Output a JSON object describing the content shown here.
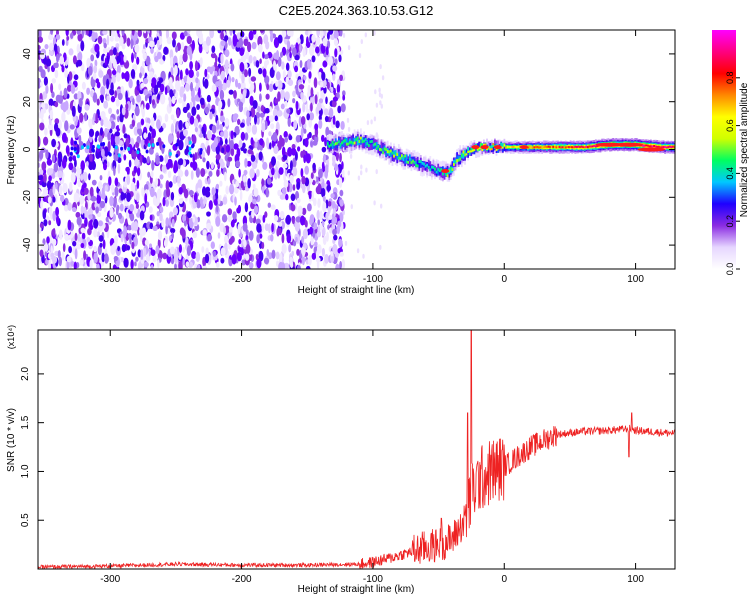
{
  "title": "C2E5.2024.363.10.53.G12",
  "chart_data": [
    {
      "type": "heatmap",
      "xlabel": "Height of straight line (km)",
      "ylabel": "Frequency (Hz)",
      "xlim": [
        -355,
        130
      ],
      "ylim": [
        -50,
        50
      ],
      "xticks": [
        -300,
        -200,
        -100,
        0,
        100
      ],
      "yticks": [
        -40,
        -20,
        0,
        20,
        40
      ],
      "colorbar": {
        "label": "Normalized spectral amplitude",
        "range": [
          0,
          1
        ],
        "ticks": [
          0.0,
          0.2,
          0.4,
          0.6,
          0.8
        ],
        "colormap": [
          "#ffffff",
          "#e6d6ff",
          "#8a2be2",
          "#1f00ff",
          "#00c8ff",
          "#00ff60",
          "#d0ff00",
          "#ffff00",
          "#ff8800",
          "#ff0000",
          "#ff0080",
          "#ff00ff"
        ]
      },
      "noise_region": {
        "x": [
          -355,
          -122
        ],
        "amplitude": 0.15
      },
      "signal_ridge": {
        "x": [
          -135,
          -120,
          -110,
          -100,
          -90,
          -80,
          -70,
          -60,
          -50,
          -43,
          -38,
          -32,
          -25,
          -15,
          -5,
          5,
          20,
          40,
          60,
          80,
          100,
          120,
          130
        ],
        "frequency": [
          2,
          3,
          4,
          2,
          -1,
          -3,
          -5,
          -7,
          -9,
          -10,
          -5,
          -2,
          0,
          1,
          1,
          1,
          1,
          1,
          1,
          2,
          2,
          1,
          1
        ],
        "amplitude": [
          0.45,
          0.5,
          0.5,
          0.45,
          0.5,
          0.5,
          0.45,
          0.4,
          0.45,
          0.55,
          0.5,
          0.55,
          0.6,
          0.65,
          0.65,
          0.65,
          0.75,
          0.8,
          0.85,
          0.95,
          0.95,
          0.9,
          0.9
        ]
      }
    },
    {
      "type": "line",
      "xlabel": "Height of straight line (km)",
      "ylabel": "SNR (10 * v/v)",
      "yunit_label": "(x10⁴)",
      "xlim": [
        -355,
        130
      ],
      "ylim": [
        0,
        2.45
      ],
      "xticks": [
        -300,
        -200,
        -100,
        0,
        100
      ],
      "yticks": [
        0.5,
        1.0,
        1.5,
        2.0
      ],
      "color": "#ee2222",
      "series": [
        {
          "x": [
            -355,
            -300,
            -250,
            -200,
            -150,
            -110,
            -100,
            -90,
            -80,
            -70,
            -60,
            -50,
            -40,
            -30,
            -25,
            -20,
            -15,
            -10,
            0,
            10,
            20,
            30,
            40,
            60,
            80,
            95,
            100,
            110,
            130
          ],
          "y": [
            0.02,
            0.03,
            0.05,
            0.04,
            0.04,
            0.05,
            0.07,
            0.1,
            0.14,
            0.18,
            0.22,
            0.25,
            0.3,
            0.5,
            0.75,
            0.9,
            0.95,
            1.0,
            1.05,
            1.15,
            1.25,
            1.32,
            1.38,
            1.41,
            1.42,
            1.44,
            1.42,
            1.41,
            1.39
          ]
        }
      ],
      "spikes": [
        {
          "x": -25,
          "y": 2.45
        },
        {
          "x": -28,
          "y": 1.6
        },
        {
          "x": -48,
          "y": 0.52
        },
        {
          "x": 97,
          "y": 1.6
        },
        {
          "x": 95,
          "y": 1.15
        }
      ]
    }
  ]
}
